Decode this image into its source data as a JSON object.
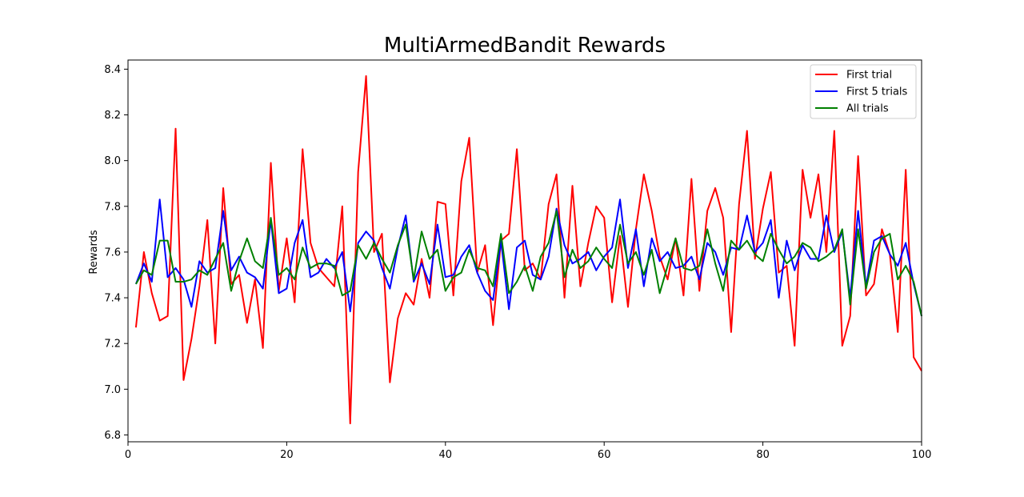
{
  "chart_data": {
    "type": "line",
    "title": "MultiArmedBandit Rewards",
    "xlabel": "",
    "ylabel": "Rewards",
    "xlim": [
      0,
      100
    ],
    "ylim": [
      6.77,
      8.44
    ],
    "xticks": [
      0,
      20,
      40,
      60,
      80,
      100
    ],
    "yticks": [
      6.8,
      7.0,
      7.2,
      7.4,
      7.6,
      7.8,
      8.0,
      8.2,
      8.4
    ],
    "legend_position": "top-right",
    "grid": false,
    "x": [
      1,
      2,
      3,
      4,
      5,
      6,
      7,
      8,
      9,
      10,
      11,
      12,
      13,
      14,
      15,
      16,
      17,
      18,
      19,
      20,
      21,
      22,
      23,
      24,
      25,
      26,
      27,
      28,
      29,
      30,
      31,
      32,
      33,
      34,
      35,
      36,
      37,
      38,
      39,
      40,
      41,
      42,
      43,
      44,
      45,
      46,
      47,
      48,
      49,
      50,
      51,
      52,
      53,
      54,
      55,
      56,
      57,
      58,
      59,
      60,
      61,
      62,
      63,
      64,
      65,
      66,
      67,
      68,
      69,
      70,
      71,
      72,
      73,
      74,
      75,
      76,
      77,
      78,
      79,
      80,
      81,
      82,
      83,
      84,
      85,
      86,
      87,
      88,
      89,
      90,
      91,
      92,
      93,
      94,
      95,
      96,
      97,
      98,
      99,
      100
    ],
    "series": [
      {
        "name": "First trial",
        "color": "#ff0000",
        "values": [
          7.27,
          7.6,
          7.42,
          7.3,
          7.32,
          8.14,
          7.04,
          7.22,
          7.45,
          7.74,
          7.2,
          7.88,
          7.46,
          7.5,
          7.29,
          7.48,
          7.18,
          7.99,
          7.43,
          7.66,
          7.38,
          8.05,
          7.64,
          7.53,
          7.49,
          7.45,
          7.8,
          6.85,
          7.95,
          8.37,
          7.6,
          7.68,
          7.03,
          7.31,
          7.42,
          7.37,
          7.57,
          7.4,
          7.82,
          7.81,
          7.41,
          7.91,
          8.1,
          7.51,
          7.63,
          7.28,
          7.65,
          7.68,
          8.05,
          7.52,
          7.55,
          7.48,
          7.81,
          7.94,
          7.4,
          7.89,
          7.45,
          7.64,
          7.8,
          7.75,
          7.38,
          7.67,
          7.36,
          7.7,
          7.94,
          7.78,
          7.58,
          7.48,
          7.66,
          7.41,
          7.92,
          7.43,
          7.78,
          7.88,
          7.75,
          7.25,
          7.81,
          8.13,
          7.57,
          7.79,
          7.95,
          7.51,
          7.54,
          7.19,
          7.96,
          7.75,
          7.94,
          7.6,
          8.13,
          7.19,
          7.32,
          8.02,
          7.41,
          7.46,
          7.7,
          7.59,
          7.25,
          7.96,
          7.14,
          7.08
        ]
      },
      {
        "name": "First 5 trials",
        "color": "#0000ff",
        "values": [
          7.46,
          7.55,
          7.47,
          7.83,
          7.49,
          7.53,
          7.48,
          7.36,
          7.56,
          7.51,
          7.53,
          7.78,
          7.52,
          7.58,
          7.51,
          7.49,
          7.44,
          7.74,
          7.42,
          7.44,
          7.64,
          7.74,
          7.49,
          7.51,
          7.57,
          7.53,
          7.6,
          7.34,
          7.64,
          7.69,
          7.65,
          7.53,
          7.44,
          7.62,
          7.76,
          7.47,
          7.55,
          7.46,
          7.72,
          7.49,
          7.5,
          7.58,
          7.63,
          7.51,
          7.43,
          7.39,
          7.65,
          7.35,
          7.62,
          7.65,
          7.5,
          7.48,
          7.58,
          7.79,
          7.63,
          7.55,
          7.57,
          7.6,
          7.52,
          7.58,
          7.62,
          7.83,
          7.53,
          7.7,
          7.45,
          7.66,
          7.56,
          7.6,
          7.53,
          7.54,
          7.58,
          7.48,
          7.64,
          7.6,
          7.5,
          7.62,
          7.61,
          7.76,
          7.6,
          7.64,
          7.74,
          7.4,
          7.65,
          7.52,
          7.63,
          7.57,
          7.57,
          7.76,
          7.6,
          7.69,
          7.4,
          7.78,
          7.45,
          7.65,
          7.67,
          7.59,
          7.54,
          7.64,
          7.46,
          7.32
        ]
      },
      {
        "name": "All trials",
        "color": "#008000",
        "values": [
          7.46,
          7.52,
          7.5,
          7.65,
          7.65,
          7.47,
          7.47,
          7.48,
          7.52,
          7.5,
          7.57,
          7.64,
          7.43,
          7.56,
          7.66,
          7.56,
          7.53,
          7.75,
          7.5,
          7.53,
          7.48,
          7.62,
          7.53,
          7.55,
          7.55,
          7.54,
          7.41,
          7.43,
          7.63,
          7.57,
          7.64,
          7.57,
          7.51,
          7.63,
          7.72,
          7.48,
          7.69,
          7.57,
          7.61,
          7.43,
          7.49,
          7.51,
          7.61,
          7.53,
          7.52,
          7.45,
          7.68,
          7.42,
          7.47,
          7.54,
          7.43,
          7.58,
          7.64,
          7.78,
          7.49,
          7.61,
          7.53,
          7.56,
          7.62,
          7.57,
          7.53,
          7.72,
          7.55,
          7.6,
          7.5,
          7.61,
          7.42,
          7.54,
          7.66,
          7.53,
          7.52,
          7.54,
          7.7,
          7.55,
          7.43,
          7.65,
          7.61,
          7.65,
          7.59,
          7.56,
          7.68,
          7.61,
          7.55,
          7.58,
          7.64,
          7.62,
          7.56,
          7.58,
          7.61,
          7.7,
          7.37,
          7.7,
          7.44,
          7.6,
          7.66,
          7.68,
          7.48,
          7.54,
          7.47,
          7.32
        ]
      }
    ]
  }
}
